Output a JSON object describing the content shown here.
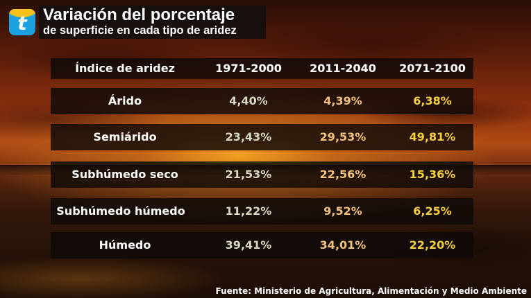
{
  "header": {
    "logo_letter": "t",
    "title": "Variación del porcentaje",
    "subtitle": "de superficie en cada tipo de aridez"
  },
  "table": {
    "headers": [
      "Índice de aridez",
      "1971-2000",
      "2011-2040",
      "2071-2100"
    ],
    "rows": [
      {
        "label": "Árido",
        "values": [
          "4,40%",
          "4,39%",
          "6,38%"
        ]
      },
      {
        "label": "Semiárido",
        "values": [
          "23,43%",
          "29,53%",
          "49,81%"
        ]
      },
      {
        "label": "Subhúmedo seco",
        "values": [
          "21,53%",
          "22,56%",
          "15,36%"
        ]
      },
      {
        "label": "Subhúmedo húmedo",
        "values": [
          "11,22%",
          "9,52%",
          "6,25%"
        ]
      },
      {
        "label": "Húmedo",
        "values": [
          "39,41%",
          "34,01%",
          "22,20%"
        ]
      }
    ],
    "column_colors": [
      "#d9d9c2",
      "#f4c27a",
      "#f5d13a"
    ]
  },
  "footer": {
    "source": "Fuente: Ministerio de Agricultura, Alimentación y Medio Ambiente"
  }
}
